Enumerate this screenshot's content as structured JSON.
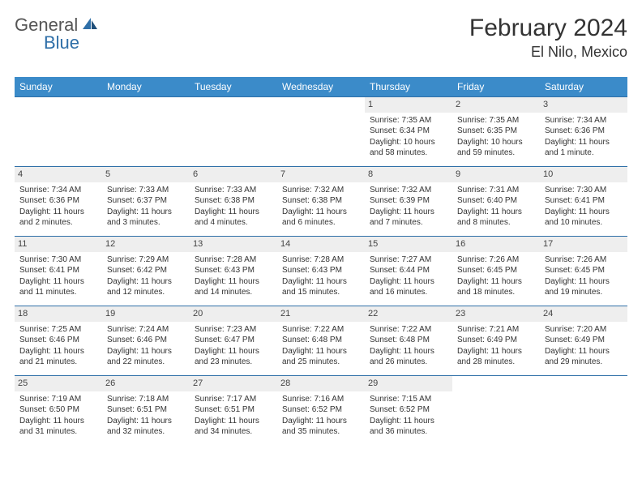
{
  "logo": {
    "general": "General",
    "blue": "Blue"
  },
  "title": "February 2024",
  "location": "El Nilo, Mexico",
  "weekday_header_bg": "#3b8bc9",
  "weekdays": [
    "Sunday",
    "Monday",
    "Tuesday",
    "Wednesday",
    "Thursday",
    "Friday",
    "Saturday"
  ],
  "daynum_bg": "#eeeeee",
  "border_color": "#2f6fa8",
  "weeks": [
    [
      {
        "n": "",
        "sr": "",
        "ss": "",
        "dl": ""
      },
      {
        "n": "",
        "sr": "",
        "ss": "",
        "dl": ""
      },
      {
        "n": "",
        "sr": "",
        "ss": "",
        "dl": ""
      },
      {
        "n": "",
        "sr": "",
        "ss": "",
        "dl": ""
      },
      {
        "n": "1",
        "sr": "Sunrise: 7:35 AM",
        "ss": "Sunset: 6:34 PM",
        "dl": "Daylight: 10 hours and 58 minutes."
      },
      {
        "n": "2",
        "sr": "Sunrise: 7:35 AM",
        "ss": "Sunset: 6:35 PM",
        "dl": "Daylight: 10 hours and 59 minutes."
      },
      {
        "n": "3",
        "sr": "Sunrise: 7:34 AM",
        "ss": "Sunset: 6:36 PM",
        "dl": "Daylight: 11 hours and 1 minute."
      }
    ],
    [
      {
        "n": "4",
        "sr": "Sunrise: 7:34 AM",
        "ss": "Sunset: 6:36 PM",
        "dl": "Daylight: 11 hours and 2 minutes."
      },
      {
        "n": "5",
        "sr": "Sunrise: 7:33 AM",
        "ss": "Sunset: 6:37 PM",
        "dl": "Daylight: 11 hours and 3 minutes."
      },
      {
        "n": "6",
        "sr": "Sunrise: 7:33 AM",
        "ss": "Sunset: 6:38 PM",
        "dl": "Daylight: 11 hours and 4 minutes."
      },
      {
        "n": "7",
        "sr": "Sunrise: 7:32 AM",
        "ss": "Sunset: 6:38 PM",
        "dl": "Daylight: 11 hours and 6 minutes."
      },
      {
        "n": "8",
        "sr": "Sunrise: 7:32 AM",
        "ss": "Sunset: 6:39 PM",
        "dl": "Daylight: 11 hours and 7 minutes."
      },
      {
        "n": "9",
        "sr": "Sunrise: 7:31 AM",
        "ss": "Sunset: 6:40 PM",
        "dl": "Daylight: 11 hours and 8 minutes."
      },
      {
        "n": "10",
        "sr": "Sunrise: 7:30 AM",
        "ss": "Sunset: 6:41 PM",
        "dl": "Daylight: 11 hours and 10 minutes."
      }
    ],
    [
      {
        "n": "11",
        "sr": "Sunrise: 7:30 AM",
        "ss": "Sunset: 6:41 PM",
        "dl": "Daylight: 11 hours and 11 minutes."
      },
      {
        "n": "12",
        "sr": "Sunrise: 7:29 AM",
        "ss": "Sunset: 6:42 PM",
        "dl": "Daylight: 11 hours and 12 minutes."
      },
      {
        "n": "13",
        "sr": "Sunrise: 7:28 AM",
        "ss": "Sunset: 6:43 PM",
        "dl": "Daylight: 11 hours and 14 minutes."
      },
      {
        "n": "14",
        "sr": "Sunrise: 7:28 AM",
        "ss": "Sunset: 6:43 PM",
        "dl": "Daylight: 11 hours and 15 minutes."
      },
      {
        "n": "15",
        "sr": "Sunrise: 7:27 AM",
        "ss": "Sunset: 6:44 PM",
        "dl": "Daylight: 11 hours and 16 minutes."
      },
      {
        "n": "16",
        "sr": "Sunrise: 7:26 AM",
        "ss": "Sunset: 6:45 PM",
        "dl": "Daylight: 11 hours and 18 minutes."
      },
      {
        "n": "17",
        "sr": "Sunrise: 7:26 AM",
        "ss": "Sunset: 6:45 PM",
        "dl": "Daylight: 11 hours and 19 minutes."
      }
    ],
    [
      {
        "n": "18",
        "sr": "Sunrise: 7:25 AM",
        "ss": "Sunset: 6:46 PM",
        "dl": "Daylight: 11 hours and 21 minutes."
      },
      {
        "n": "19",
        "sr": "Sunrise: 7:24 AM",
        "ss": "Sunset: 6:46 PM",
        "dl": "Daylight: 11 hours and 22 minutes."
      },
      {
        "n": "20",
        "sr": "Sunrise: 7:23 AM",
        "ss": "Sunset: 6:47 PM",
        "dl": "Daylight: 11 hours and 23 minutes."
      },
      {
        "n": "21",
        "sr": "Sunrise: 7:22 AM",
        "ss": "Sunset: 6:48 PM",
        "dl": "Daylight: 11 hours and 25 minutes."
      },
      {
        "n": "22",
        "sr": "Sunrise: 7:22 AM",
        "ss": "Sunset: 6:48 PM",
        "dl": "Daylight: 11 hours and 26 minutes."
      },
      {
        "n": "23",
        "sr": "Sunrise: 7:21 AM",
        "ss": "Sunset: 6:49 PM",
        "dl": "Daylight: 11 hours and 28 minutes."
      },
      {
        "n": "24",
        "sr": "Sunrise: 7:20 AM",
        "ss": "Sunset: 6:49 PM",
        "dl": "Daylight: 11 hours and 29 minutes."
      }
    ],
    [
      {
        "n": "25",
        "sr": "Sunrise: 7:19 AM",
        "ss": "Sunset: 6:50 PM",
        "dl": "Daylight: 11 hours and 31 minutes."
      },
      {
        "n": "26",
        "sr": "Sunrise: 7:18 AM",
        "ss": "Sunset: 6:51 PM",
        "dl": "Daylight: 11 hours and 32 minutes."
      },
      {
        "n": "27",
        "sr": "Sunrise: 7:17 AM",
        "ss": "Sunset: 6:51 PM",
        "dl": "Daylight: 11 hours and 34 minutes."
      },
      {
        "n": "28",
        "sr": "Sunrise: 7:16 AM",
        "ss": "Sunset: 6:52 PM",
        "dl": "Daylight: 11 hours and 35 minutes."
      },
      {
        "n": "29",
        "sr": "Sunrise: 7:15 AM",
        "ss": "Sunset: 6:52 PM",
        "dl": "Daylight: 11 hours and 36 minutes."
      },
      {
        "n": "",
        "sr": "",
        "ss": "",
        "dl": ""
      },
      {
        "n": "",
        "sr": "",
        "ss": "",
        "dl": ""
      }
    ]
  ]
}
